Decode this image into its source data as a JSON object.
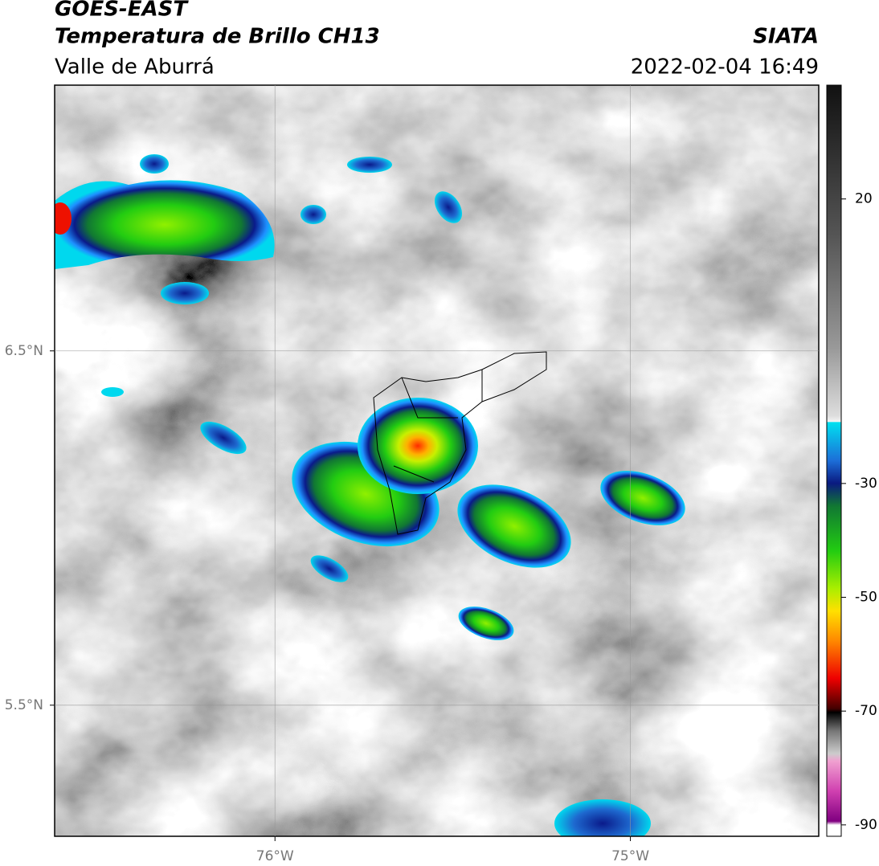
{
  "header": {
    "title": "GOES-EAST",
    "subtitle": "Temperatura de Brillo CH13",
    "region": "Valle de Aburrá",
    "source": "SIATA",
    "datetime": "2022-02-04 16:49"
  },
  "map": {
    "lonlim": [
      -76.62,
      -74.47
    ],
    "latlim": [
      5.13,
      7.25
    ],
    "lonticks": [
      {
        "value": -76,
        "label": "76°W"
      },
      {
        "value": -75,
        "label": "75°W"
      }
    ],
    "latticks": [
      {
        "value": 6.5,
        "label": "6.5°N"
      },
      {
        "value": 5.5,
        "label": "5.5°N"
      }
    ]
  },
  "colorbar": {
    "lim": [
      -92,
      40
    ],
    "ticks": [
      20,
      -30,
      -50,
      -70,
      -90
    ]
  }
}
